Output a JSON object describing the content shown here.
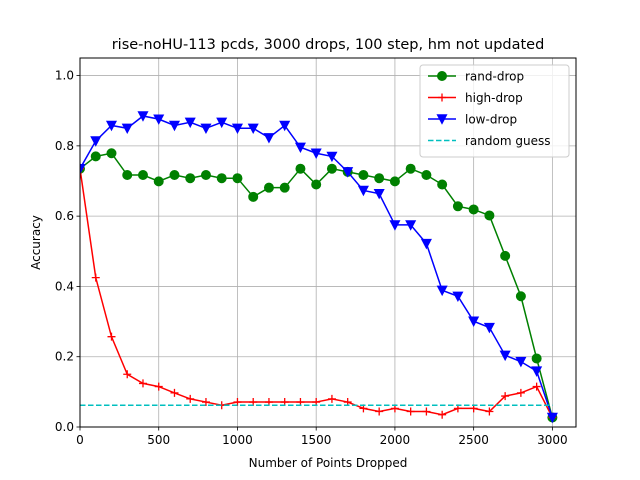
{
  "chart_data": {
    "type": "line",
    "title": "rise-noHU-113 pcds, 3000 drops, 100 step, hm not updated",
    "xlabel": "Number of Points Dropped",
    "ylabel": "Accuracy",
    "xlim": [
      0,
      3150
    ],
    "ylim": [
      0,
      1.05
    ],
    "xticks": [
      0,
      500,
      1000,
      1500,
      2000,
      2500,
      3000
    ],
    "yticks": [
      0.0,
      0.2,
      0.4,
      0.6,
      0.8,
      1.0
    ],
    "xtick_labels": [
      "0",
      "500",
      "1000",
      "1500",
      "2000",
      "2500",
      "3000"
    ],
    "ytick_labels": [
      "0.0",
      "0.2",
      "0.4",
      "0.6",
      "0.8",
      "1.0"
    ],
    "grid": true,
    "legend_position": "top-right",
    "x": [
      0,
      100,
      200,
      300,
      400,
      500,
      600,
      700,
      800,
      900,
      1000,
      1100,
      1200,
      1300,
      1400,
      1500,
      1600,
      1700,
      1800,
      1900,
      2000,
      2100,
      2200,
      2300,
      2400,
      2500,
      2600,
      2700,
      2800,
      2900,
      3000
    ],
    "series": [
      {
        "name": "rand-drop",
        "color": "#008000",
        "marker": "circle",
        "linestyle": "solid",
        "values": [
          0.735,
          0.77,
          0.779,
          0.717,
          0.717,
          0.699,
          0.717,
          0.708,
          0.717,
          0.708,
          0.708,
          0.655,
          0.681,
          0.681,
          0.735,
          0.69,
          0.735,
          0.726,
          0.717,
          0.708,
          0.699,
          0.735,
          0.717,
          0.69,
          0.628,
          0.619,
          0.602,
          0.487,
          0.372,
          0.195,
          0.027
        ]
      },
      {
        "name": "high-drop",
        "color": "#ff0000",
        "marker": "plus",
        "linestyle": "solid",
        "values": [
          0.735,
          0.425,
          0.257,
          0.15,
          0.124,
          0.115,
          0.097,
          0.08,
          0.071,
          0.062,
          0.071,
          0.071,
          0.071,
          0.071,
          0.071,
          0.071,
          0.08,
          0.071,
          0.053,
          0.044,
          0.053,
          0.044,
          0.044,
          0.035,
          0.053,
          0.053,
          0.044,
          0.088,
          0.097,
          0.115,
          0.027
        ]
      },
      {
        "name": "low-drop",
        "color": "#0000ff",
        "marker": "triangle-down",
        "linestyle": "solid",
        "values": [
          0.735,
          0.814,
          0.858,
          0.85,
          0.885,
          0.876,
          0.858,
          0.867,
          0.85,
          0.867,
          0.85,
          0.85,
          0.823,
          0.858,
          0.796,
          0.779,
          0.77,
          0.726,
          0.673,
          0.664,
          0.575,
          0.575,
          0.522,
          0.389,
          0.372,
          0.301,
          0.283,
          0.204,
          0.186,
          0.159,
          0.027
        ]
      },
      {
        "name": "random guess",
        "color": "#00bfbf",
        "marker": "none",
        "linestyle": "dashed",
        "values": [
          0.062,
          0.062,
          0.062,
          0.062,
          0.062,
          0.062,
          0.062,
          0.062,
          0.062,
          0.062,
          0.062,
          0.062,
          0.062,
          0.062,
          0.062,
          0.062,
          0.062,
          0.062,
          0.062,
          0.062,
          0.062,
          0.062,
          0.062,
          0.062,
          0.062,
          0.062,
          0.062,
          0.062,
          0.062,
          0.062,
          0.062
        ]
      }
    ]
  }
}
